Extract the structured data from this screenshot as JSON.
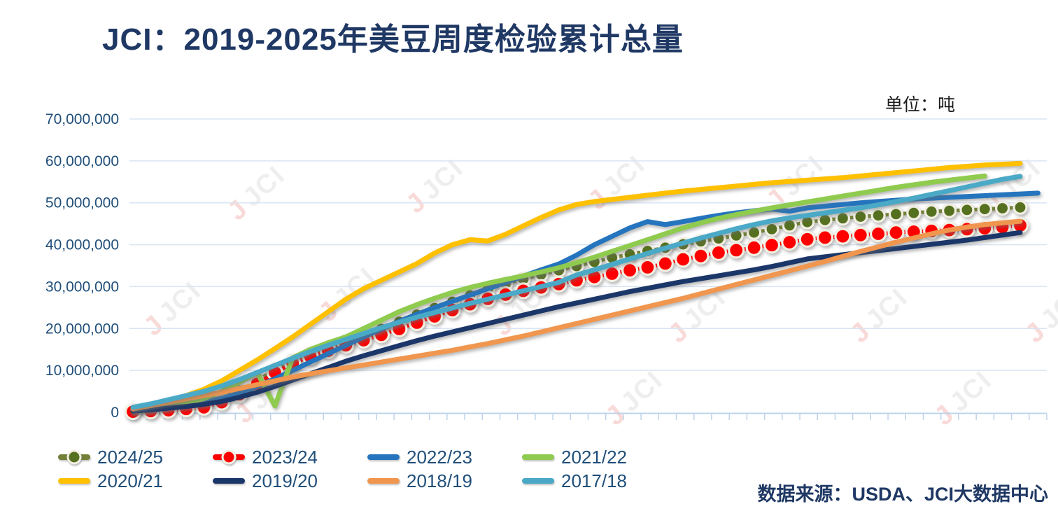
{
  "page": {
    "title": "JCI：2019-2025年美豆周度检验累计总量",
    "unit_label": "单位：吨",
    "source_label": "数据来源：USDA、JCI大数据中心"
  },
  "watermark": {
    "j": "J",
    "text": "JCI"
  },
  "legend": {
    "items": [
      {
        "label": "2024/25",
        "color": "#728038",
        "marker_color": "#55701F",
        "has_marker": true
      },
      {
        "label": "2023/24",
        "color": "#FF0000",
        "marker_color": "#FF0000",
        "has_marker": true
      },
      {
        "label": "2022/23",
        "color": "#2575BE",
        "has_marker": false
      },
      {
        "label": "2021/22",
        "color": "#8FCB4E",
        "has_marker": false
      },
      {
        "label": "2020/21",
        "color": "#FFC000",
        "has_marker": false
      },
      {
        "label": "2019/20",
        "color": "#1B3668",
        "has_marker": false
      },
      {
        "label": "2018/19",
        "color": "#F0964E",
        "has_marker": false
      },
      {
        "label": "2017/18",
        "color": "#4AA9C6",
        "has_marker": false
      }
    ]
  },
  "chart_data": {
    "type": "line",
    "title": "JCI：2019-2025年美豆周度检验累计总量",
    "ylabel": "吨",
    "x_unit": "week",
    "x_range": [
      1,
      52
    ],
    "grid": true,
    "legend_position": "bottom-left",
    "y_axis": {
      "min": 0,
      "max": 70000000,
      "tick_interval": 10000000,
      "tick_labels": [
        "0",
        "10,000,000",
        "20,000,000",
        "30,000,000",
        "40,000,000",
        "50,000,000",
        "60,000,000",
        "70,000,000"
      ]
    },
    "marker_ring_color": "#F2EFE3",
    "series": [
      {
        "name": "2024/25",
        "color": "#728038",
        "marker": true,
        "marker_color": "#55701F",
        "marker_r": 9,
        "values": [
          400000,
          800000,
          1200000,
          1700000,
          2300000,
          3400000,
          5200000,
          7600000,
          10200000,
          12300000,
          13900000,
          15400000,
          16900000,
          18400000,
          19900000,
          21600000,
          23300000,
          24900000,
          26400000,
          27900000,
          29400000,
          30700000,
          31800000,
          32900000,
          33900000,
          34900000,
          35900000,
          36900000,
          37700000,
          38500000,
          39300000,
          40100000,
          40800000,
          41500000,
          42200000,
          42900000,
          43700000,
          44600000,
          45400000,
          45900000,
          46300000,
          46700000,
          47000000,
          47300000,
          47600000,
          47900000,
          48100000,
          48300000,
          48500000,
          48700000,
          48900000
        ]
      },
      {
        "name": "2023/24",
        "color": "#FF0000",
        "marker": true,
        "marker_color": "#FF0000",
        "marker_r": 10.5,
        "values": [
          150000,
          300000,
          500000,
          800000,
          1200000,
          2400000,
          4300000,
          6800000,
          9500000,
          11700000,
          13300000,
          14700000,
          16000000,
          17200000,
          18500000,
          19900000,
          21400000,
          22900000,
          24400000,
          25800000,
          27100000,
          28100000,
          29000000,
          29800000,
          30600000,
          31500000,
          32300000,
          33100000,
          33900000,
          34600000,
          35500000,
          36500000,
          37300000,
          38100000,
          38700000,
          39300000,
          39900000,
          40600000,
          41300000,
          41700000,
          42000000,
          42300000,
          42600000,
          42900000,
          43100000,
          43300000,
          43500000,
          43700000,
          43900000,
          44200000,
          44600000
        ]
      },
      {
        "name": "2022/23",
        "color": "#2575BE",
        "marker": false,
        "values": [
          500000,
          900000,
          1400000,
          1900000,
          2500000,
          3300000,
          4600000,
          6200000,
          8000000,
          10000000,
          12000000,
          14000000,
          16000000,
          18000000,
          19900000,
          21700000,
          23400000,
          25000000,
          26500000,
          28000000,
          29500000,
          31000000,
          32500000,
          34000000,
          35400000,
          37500000,
          40000000,
          42000000,
          44000000,
          45500000,
          44800000,
          45500000,
          46300000,
          47000000,
          47600000,
          48100000,
          48500000,
          48000000,
          48800000,
          49200000,
          49600000,
          50000000,
          50300000,
          50600000,
          50900000,
          51100000,
          51300000,
          51500000,
          51700000,
          51900000,
          52100000,
          52300000
        ]
      },
      {
        "name": "2021/22",
        "color": "#8FCB4E",
        "marker": false,
        "values": [
          300000,
          700000,
          1400000,
          2200000,
          3300000,
          5000000,
          7200000,
          9500000,
          1500000,
          13000000,
          15000000,
          16600000,
          18000000,
          20000000,
          22000000,
          24000000,
          25700000,
          27200000,
          28600000,
          29800000,
          30800000,
          31700000,
          32600000,
          33500000,
          34500000,
          35700000,
          37000000,
          38400000,
          39800000,
          41200000,
          42600000,
          44000000,
          45200000,
          46300000,
          47200000,
          48000000,
          48800000,
          49500000,
          50200000,
          50900000,
          51600000,
          52300000,
          53000000,
          53700000,
          54300000,
          54900000,
          55400000,
          55900000,
          56400000
        ]
      },
      {
        "name": "2020/21",
        "color": "#FFC000",
        "marker": false,
        "values": [
          600000,
          1400000,
          2600000,
          4000000,
          5500000,
          7500000,
          10000000,
          12500000,
          15200000,
          18000000,
          21000000,
          24000000,
          27000000,
          29500000,
          31500000,
          33500000,
          35500000,
          38000000,
          40000000,
          41200000,
          40900000,
          42500000,
          44500000,
          46500000,
          48300000,
          49600000,
          50300000,
          50800000,
          51300000,
          51800000,
          52300000,
          52800000,
          53200000,
          53600000,
          54000000,
          54400000,
          54800000,
          55100000,
          55400000,
          55700000,
          56000000,
          56400000,
          56800000,
          57200000,
          57600000,
          58000000,
          58400000,
          58700000,
          59000000,
          59200000,
          59400000
        ]
      },
      {
        "name": "2019/20",
        "color": "#1B3668",
        "marker": false,
        "values": [
          300000,
          600000,
          1000000,
          1400000,
          1900000,
          2600000,
          3600000,
          4800000,
          6200000,
          7700000,
          9200000,
          10700000,
          12200000,
          13500000,
          14700000,
          15900000,
          17100000,
          18200000,
          19200000,
          20200000,
          21200000,
          22200000,
          23200000,
          24200000,
          25200000,
          26100000,
          27000000,
          27900000,
          28800000,
          29600000,
          30400000,
          31200000,
          31900000,
          32600000,
          33300000,
          34000000,
          34800000,
          35700000,
          36600000,
          37100000,
          37600000,
          38100000,
          38600000,
          39100000,
          39600000,
          40100000,
          40600000,
          41100000,
          41700000,
          42300000,
          42900000
        ]
      },
      {
        "name": "2018/19",
        "color": "#F0964E",
        "marker": false,
        "values": [
          800000,
          1600000,
          2400000,
          3200000,
          4000000,
          4800000,
          5700000,
          6600000,
          7500000,
          8400000,
          9200000,
          9900000,
          10600000,
          11300000,
          12000000,
          12700000,
          13400000,
          14100000,
          14800000,
          15600000,
          16400000,
          17300000,
          18200000,
          19200000,
          20200000,
          21200000,
          22200000,
          23200000,
          24200000,
          25200000,
          26200000,
          27200000,
          28300000,
          29400000,
          30500000,
          31600000,
          32700000,
          33800000,
          34900000,
          36000000,
          37200000,
          38400000,
          39500000,
          40600000,
          41600000,
          42600000,
          43500000,
          44200000,
          44800000,
          45200000,
          45600000
        ]
      },
      {
        "name": "2017/18",
        "color": "#4AA9C6",
        "marker": false,
        "values": [
          1200000,
          2000000,
          3000000,
          4000000,
          5000000,
          6300000,
          7800000,
          9500000,
          11200000,
          12900000,
          14500000,
          16000000,
          17400000,
          18800000,
          20200000,
          21500000,
          22700000,
          23800000,
          24900000,
          26000000,
          27000000,
          28000000,
          29000000,
          30000000,
          31000000,
          32800000,
          34000000,
          35300000,
          36600000,
          37900000,
          39200000,
          40400000,
          41600000,
          42700000,
          43800000,
          44800000,
          45700000,
          46400000,
          47000000,
          47600000,
          48200000,
          48800000,
          49500000,
          50300000,
          51100000,
          52000000,
          52900000,
          53800000,
          54700000,
          55600000,
          56300000
        ]
      }
    ]
  }
}
